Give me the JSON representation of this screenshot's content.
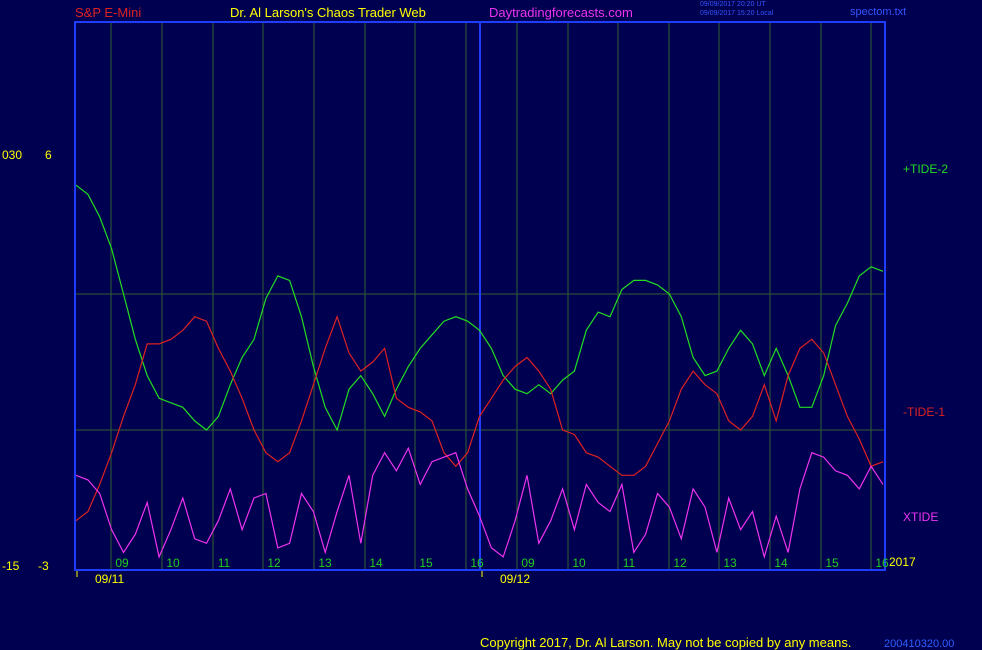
{
  "header": {
    "symbol": "S&P E-Mini",
    "title": "Dr. Al Larson's Chaos Trader Web",
    "site": "Daytradingforecasts.com",
    "stamp_ut": "09/09/2017 20:20 UT",
    "stamp_local": "09/09/2017 15:20 Local",
    "file": "spectom.txt"
  },
  "colors": {
    "background": "#000050",
    "frame": "#1f3dff",
    "grid": "#2f5f2f",
    "tide_plus": "#22dd22",
    "tide_minus": "#dd2222",
    "xtide": "#ee33ee",
    "axis_text": "#ffff00",
    "hour_text": "#22cc22"
  },
  "chart_data": {
    "type": "line",
    "left_axis": {
      "outer_labels": [
        "030",
        "-15"
      ],
      "inner_labels": [
        "6",
        "-3"
      ],
      "range": [
        -3,
        6
      ]
    },
    "days": [
      {
        "label": "09/11",
        "hours": [
          "09",
          "10",
          "11",
          "12",
          "13",
          "14",
          "15",
          "16"
        ]
      },
      {
        "label": "09/12",
        "hours": [
          "09",
          "10",
          "11",
          "12",
          "13",
          "14",
          "15",
          "16"
        ]
      }
    ],
    "year_label": "2017",
    "series": [
      {
        "name": "+TIDE-2",
        "color": "#22dd22",
        "values": [
          5.4,
          5.2,
          4.7,
          4.0,
          3.0,
          2.0,
          1.2,
          0.7,
          0.6,
          0.5,
          0.2,
          0.0,
          0.3,
          1.0,
          1.6,
          2.0,
          2.9,
          3.4,
          3.3,
          2.5,
          1.4,
          0.5,
          0.0,
          0.9,
          1.2,
          0.8,
          0.3,
          0.9,
          1.4,
          1.8,
          2.1,
          2.4,
          2.5,
          2.4,
          2.2,
          1.8,
          1.2,
          0.9,
          0.8,
          1.0,
          0.8,
          1.1,
          1.3,
          2.2,
          2.6,
          2.5,
          3.1,
          3.3,
          3.3,
          3.2,
          3.0,
          2.5,
          1.6,
          1.2,
          1.3,
          1.8,
          2.2,
          1.9,
          1.2,
          1.8,
          1.2,
          0.5,
          0.5,
          1.2,
          2.3,
          2.8,
          3.4,
          3.6,
          3.5
        ]
      },
      {
        "name": "-TIDE-1",
        "color": "#dd2222",
        "values": [
          -2.0,
          -1.8,
          -1.2,
          -0.5,
          0.3,
          1.0,
          1.9,
          1.9,
          2.0,
          2.2,
          2.5,
          2.4,
          1.8,
          1.3,
          0.7,
          0.0,
          -0.5,
          -0.7,
          -0.5,
          0.2,
          1.0,
          1.8,
          2.5,
          1.7,
          1.3,
          1.5,
          1.8,
          0.7,
          0.5,
          0.4,
          0.2,
          -0.5,
          -0.8,
          -0.5,
          0.3,
          0.7,
          1.1,
          1.4,
          1.6,
          1.3,
          0.9,
          0.0,
          -0.1,
          -0.5,
          -0.6,
          -0.8,
          -1.0,
          -1.0,
          -0.8,
          -0.3,
          0.2,
          0.9,
          1.3,
          1.0,
          0.8,
          0.2,
          0.0,
          0.3,
          1.0,
          0.2,
          1.2,
          1.8,
          2.0,
          1.7,
          1.0,
          0.3,
          -0.2,
          -0.8,
          -0.7
        ]
      },
      {
        "name": "XTIDE",
        "color": "#ee33ee",
        "values": [
          -1.0,
          -1.1,
          -1.4,
          -2.2,
          -2.7,
          -2.3,
          -1.6,
          -2.8,
          -2.2,
          -1.5,
          -2.4,
          -2.5,
          -2.0,
          -1.3,
          -2.2,
          -1.5,
          -1.4,
          -2.6,
          -2.5,
          -1.4,
          -1.8,
          -2.7,
          -1.8,
          -1.0,
          -2.5,
          -1.0,
          -0.5,
          -0.9,
          -0.4,
          -1.2,
          -0.7,
          -0.6,
          -0.5,
          -1.3,
          -1.9,
          -2.6,
          -2.8,
          -2.0,
          -1.0,
          -2.5,
          -2.0,
          -1.3,
          -2.2,
          -1.2,
          -1.6,
          -1.8,
          -1.2,
          -2.7,
          -2.3,
          -1.4,
          -1.7,
          -2.4,
          -1.3,
          -1.7,
          -2.7,
          -1.5,
          -2.2,
          -1.8,
          -2.8,
          -1.9,
          -2.7,
          -1.3,
          -0.5,
          -0.6,
          -0.9,
          -1.0,
          -1.3,
          -0.8,
          -1.2
        ]
      }
    ]
  },
  "copyright": "Copyright 2017, Dr. Al Larson. May not be copied by any means.",
  "copyright_tail": "200410320.00"
}
